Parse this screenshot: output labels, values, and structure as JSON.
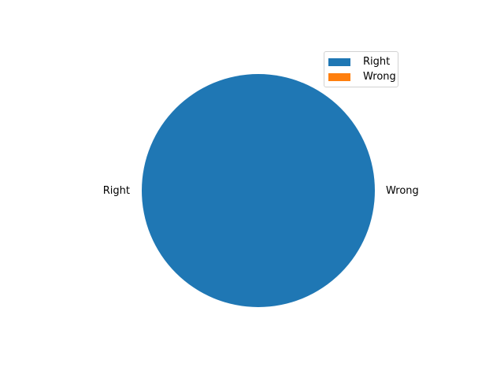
{
  "chart_data": {
    "type": "pie",
    "slices": [
      {
        "label": "Right",
        "value": 100,
        "color": "#1f77b4"
      },
      {
        "label": "Wrong",
        "value": 0,
        "color": "#ff7f0e"
      }
    ],
    "legend": {
      "position": "top-right",
      "entries": [
        "Right",
        "Wrong"
      ]
    }
  }
}
